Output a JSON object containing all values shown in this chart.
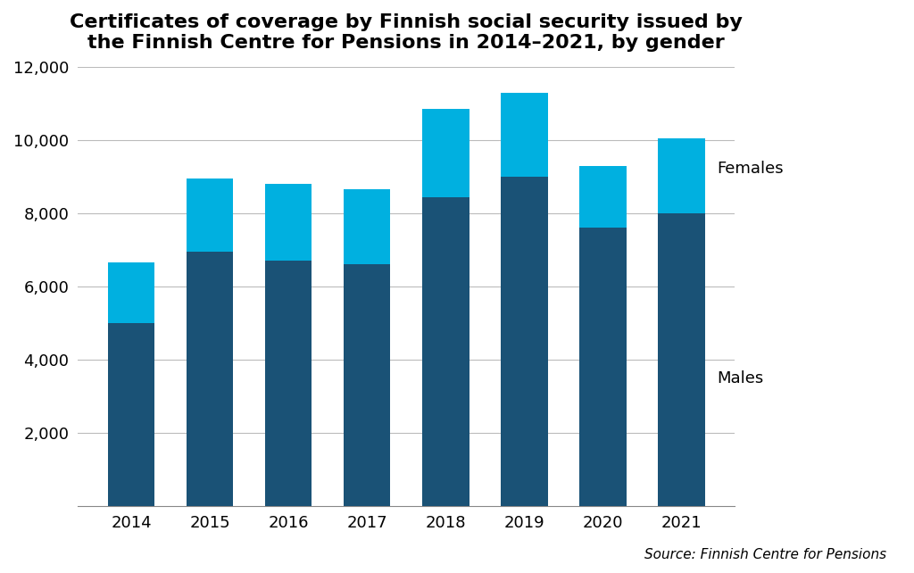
{
  "years": [
    "2014",
    "2015",
    "2016",
    "2017",
    "2018",
    "2019",
    "2020",
    "2021"
  ],
  "males": [
    5000,
    6950,
    6700,
    6600,
    8450,
    9000,
    7600,
    8000
  ],
  "females": [
    1650,
    2000,
    2100,
    2050,
    2400,
    2300,
    1700,
    2050
  ],
  "males_color": "#1a5276",
  "females_color": "#00b0e0",
  "title_line1": "Certificates of coverage by Finnish social security issued by",
  "title_line2": "the Finnish Centre for Pensions in 2014–2021, by gender",
  "source_text": "Source: Finnish Centre for Pensions",
  "legend_females": "Females",
  "legend_males": "Males",
  "ylim": [
    0,
    12000
  ],
  "yticks": [
    2000,
    4000,
    6000,
    8000,
    10000,
    12000
  ],
  "background_color": "#ffffff",
  "title_fontsize": 16,
  "tick_fontsize": 13,
  "legend_fontsize": 13,
  "source_fontsize": 11
}
